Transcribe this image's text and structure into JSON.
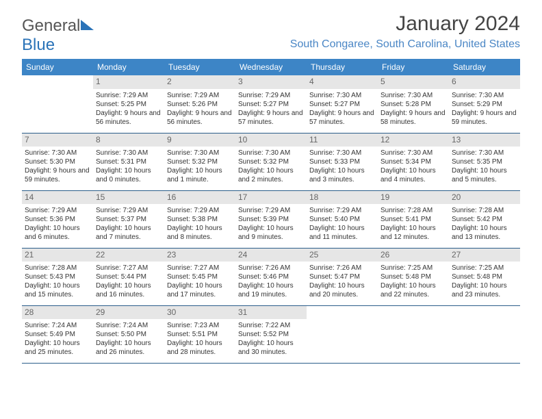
{
  "brand": {
    "part1": "General",
    "part2": "Blue"
  },
  "title": "January 2024",
  "location": "South Congaree, South Carolina, United States",
  "colors": {
    "header_bg": "#3d85c6",
    "header_text": "#ffffff",
    "row_border": "#2a5d8a",
    "daynum_bg": "#e6e6e6",
    "daynum_text": "#666666",
    "location_text": "#4a86c5",
    "body_text": "#333333"
  },
  "day_headers": [
    "Sunday",
    "Monday",
    "Tuesday",
    "Wednesday",
    "Thursday",
    "Friday",
    "Saturday"
  ],
  "weeks": [
    [
      null,
      {
        "n": "1",
        "sunrise": "7:29 AM",
        "sunset": "5:25 PM",
        "daylight": "9 hours and 56 minutes."
      },
      {
        "n": "2",
        "sunrise": "7:29 AM",
        "sunset": "5:26 PM",
        "daylight": "9 hours and 56 minutes."
      },
      {
        "n": "3",
        "sunrise": "7:29 AM",
        "sunset": "5:27 PM",
        "daylight": "9 hours and 57 minutes."
      },
      {
        "n": "4",
        "sunrise": "7:30 AM",
        "sunset": "5:27 PM",
        "daylight": "9 hours and 57 minutes."
      },
      {
        "n": "5",
        "sunrise": "7:30 AM",
        "sunset": "5:28 PM",
        "daylight": "9 hours and 58 minutes."
      },
      {
        "n": "6",
        "sunrise": "7:30 AM",
        "sunset": "5:29 PM",
        "daylight": "9 hours and 59 minutes."
      }
    ],
    [
      {
        "n": "7",
        "sunrise": "7:30 AM",
        "sunset": "5:30 PM",
        "daylight": "9 hours and 59 minutes."
      },
      {
        "n": "8",
        "sunrise": "7:30 AM",
        "sunset": "5:31 PM",
        "daylight": "10 hours and 0 minutes."
      },
      {
        "n": "9",
        "sunrise": "7:30 AM",
        "sunset": "5:32 PM",
        "daylight": "10 hours and 1 minute."
      },
      {
        "n": "10",
        "sunrise": "7:30 AM",
        "sunset": "5:32 PM",
        "daylight": "10 hours and 2 minutes."
      },
      {
        "n": "11",
        "sunrise": "7:30 AM",
        "sunset": "5:33 PM",
        "daylight": "10 hours and 3 minutes."
      },
      {
        "n": "12",
        "sunrise": "7:30 AM",
        "sunset": "5:34 PM",
        "daylight": "10 hours and 4 minutes."
      },
      {
        "n": "13",
        "sunrise": "7:30 AM",
        "sunset": "5:35 PM",
        "daylight": "10 hours and 5 minutes."
      }
    ],
    [
      {
        "n": "14",
        "sunrise": "7:29 AM",
        "sunset": "5:36 PM",
        "daylight": "10 hours and 6 minutes."
      },
      {
        "n": "15",
        "sunrise": "7:29 AM",
        "sunset": "5:37 PM",
        "daylight": "10 hours and 7 minutes."
      },
      {
        "n": "16",
        "sunrise": "7:29 AM",
        "sunset": "5:38 PM",
        "daylight": "10 hours and 8 minutes."
      },
      {
        "n": "17",
        "sunrise": "7:29 AM",
        "sunset": "5:39 PM",
        "daylight": "10 hours and 9 minutes."
      },
      {
        "n": "18",
        "sunrise": "7:29 AM",
        "sunset": "5:40 PM",
        "daylight": "10 hours and 11 minutes."
      },
      {
        "n": "19",
        "sunrise": "7:28 AM",
        "sunset": "5:41 PM",
        "daylight": "10 hours and 12 minutes."
      },
      {
        "n": "20",
        "sunrise": "7:28 AM",
        "sunset": "5:42 PM",
        "daylight": "10 hours and 13 minutes."
      }
    ],
    [
      {
        "n": "21",
        "sunrise": "7:28 AM",
        "sunset": "5:43 PM",
        "daylight": "10 hours and 15 minutes."
      },
      {
        "n": "22",
        "sunrise": "7:27 AM",
        "sunset": "5:44 PM",
        "daylight": "10 hours and 16 minutes."
      },
      {
        "n": "23",
        "sunrise": "7:27 AM",
        "sunset": "5:45 PM",
        "daylight": "10 hours and 17 minutes."
      },
      {
        "n": "24",
        "sunrise": "7:26 AM",
        "sunset": "5:46 PM",
        "daylight": "10 hours and 19 minutes."
      },
      {
        "n": "25",
        "sunrise": "7:26 AM",
        "sunset": "5:47 PM",
        "daylight": "10 hours and 20 minutes."
      },
      {
        "n": "26",
        "sunrise": "7:25 AM",
        "sunset": "5:48 PM",
        "daylight": "10 hours and 22 minutes."
      },
      {
        "n": "27",
        "sunrise": "7:25 AM",
        "sunset": "5:48 PM",
        "daylight": "10 hours and 23 minutes."
      }
    ],
    [
      {
        "n": "28",
        "sunrise": "7:24 AM",
        "sunset": "5:49 PM",
        "daylight": "10 hours and 25 minutes."
      },
      {
        "n": "29",
        "sunrise": "7:24 AM",
        "sunset": "5:50 PM",
        "daylight": "10 hours and 26 minutes."
      },
      {
        "n": "30",
        "sunrise": "7:23 AM",
        "sunset": "5:51 PM",
        "daylight": "10 hours and 28 minutes."
      },
      {
        "n": "31",
        "sunrise": "7:22 AM",
        "sunset": "5:52 PM",
        "daylight": "10 hours and 30 minutes."
      },
      null,
      null,
      null
    ]
  ]
}
